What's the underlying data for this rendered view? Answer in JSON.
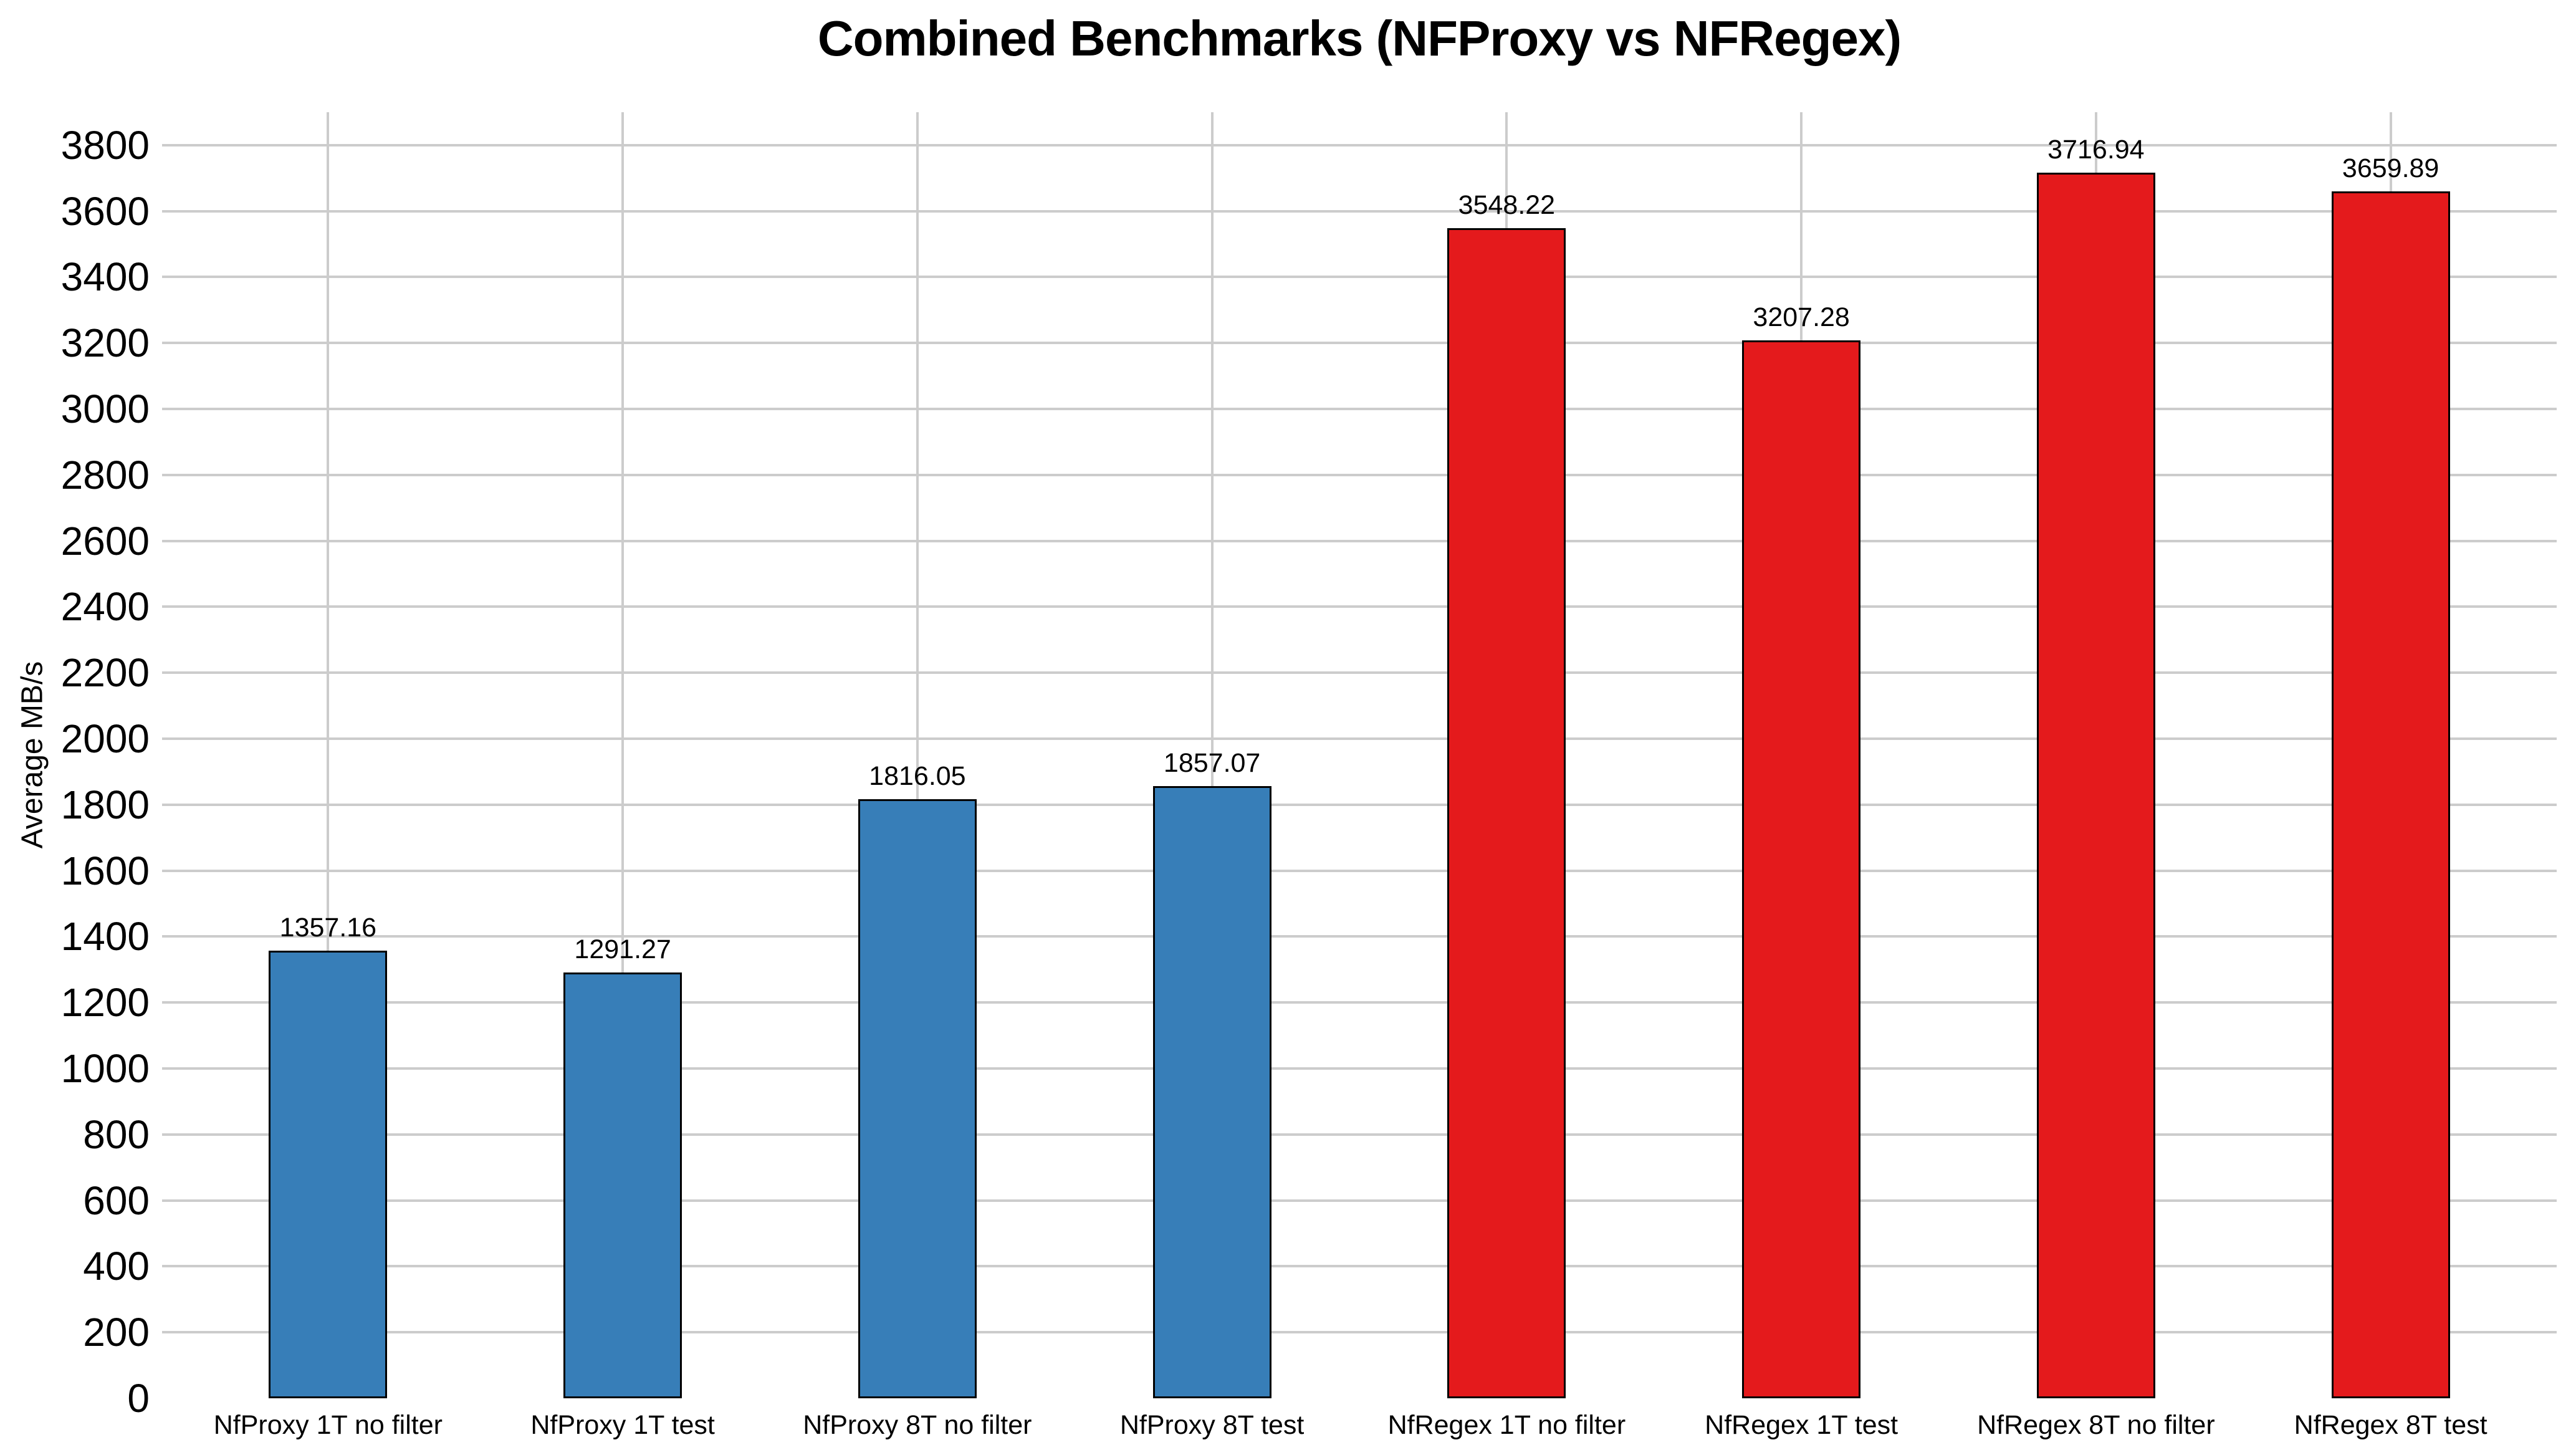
{
  "chart_data": {
    "type": "bar",
    "title": "Combined Benchmarks (NFProxy vs NFRegex)",
    "ylabel": "Average MB/s",
    "xlabel": "",
    "categories": [
      "NfProxy 1T no filter",
      "NfProxy 1T test",
      "NfProxy 8T no filter",
      "NfProxy 8T test",
      "NfRegex 1T no filter",
      "NfRegex 1T test",
      "NfRegex 8T no filter",
      "NfRegex 8T test"
    ],
    "values": [
      1357.16,
      1291.27,
      1816.05,
      1857.07,
      3548.22,
      3207.28,
      3716.94,
      3659.89
    ],
    "value_labels": [
      "1357.16",
      "1291.27",
      "1816.05",
      "1857.07",
      "3548.22",
      "3207.28",
      "3716.94",
      "3659.89"
    ],
    "bar_colors": [
      "#377EB8",
      "#377EB8",
      "#377EB8",
      "#377EB8",
      "#E41A1C",
      "#E41A1C",
      "#E41A1C",
      "#E41A1C"
    ],
    "series_colors": {
      "NfProxy": "#377EB8",
      "NfRegex": "#E41A1C"
    },
    "ylim": [
      0,
      3900
    ],
    "yticks": [
      0,
      200,
      400,
      600,
      800,
      1000,
      1200,
      1400,
      1600,
      1800,
      2000,
      2200,
      2400,
      2600,
      2800,
      3000,
      3200,
      3400,
      3600,
      3800
    ],
    "grid": true,
    "grid_color": "#cccccc",
    "bar_edge_color": "#000000",
    "background_color": "#ffffff",
    "legend_position": "none"
  }
}
